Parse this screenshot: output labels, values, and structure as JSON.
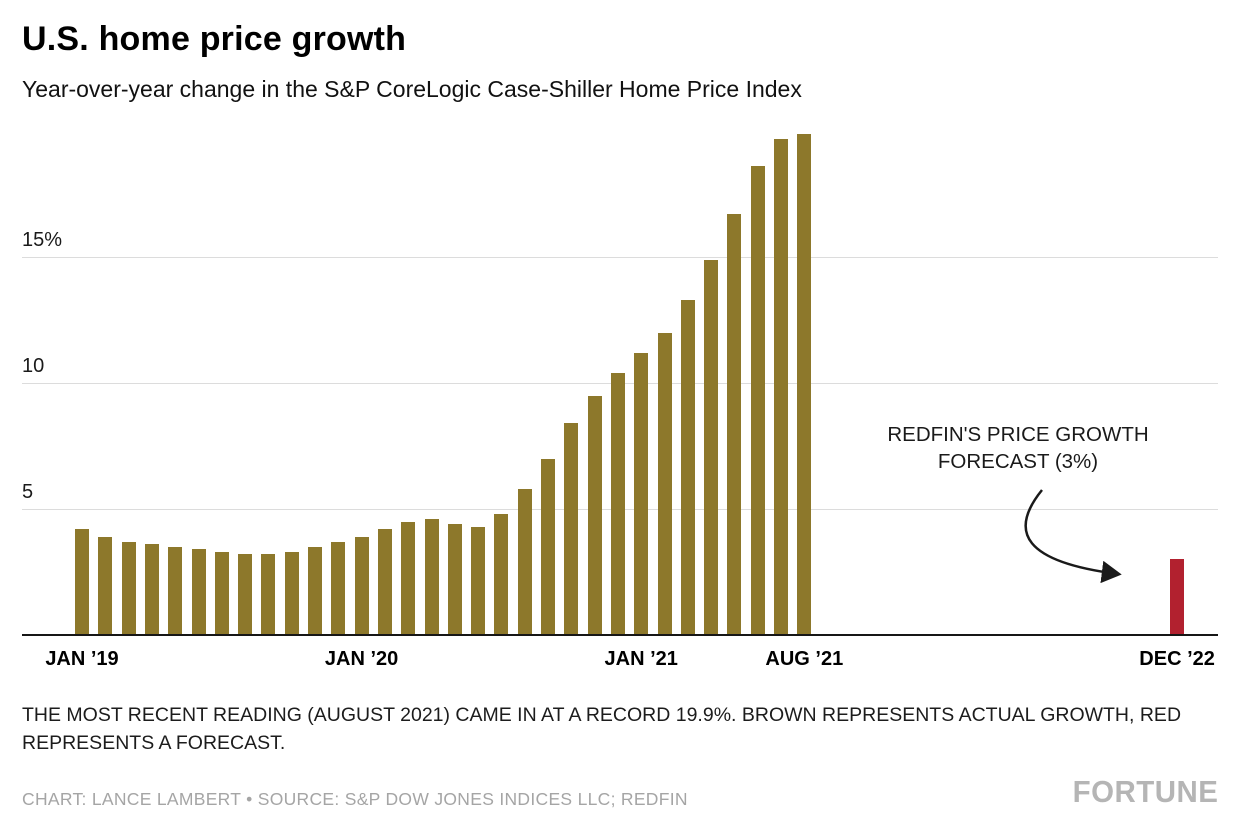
{
  "chart_data": {
    "type": "bar",
    "title": "U.S. home price growth",
    "subtitle": "Year-over-year change in the S&P CoreLogic Case-Shiller Home Price Index",
    "xlabel": "",
    "ylabel": "",
    "ylim": [
      0,
      20.5
    ],
    "grid": "horizontal",
    "legend": "none",
    "annotation": "REDFIN'S PRICE GROWTH FORECAST (3%)",
    "yticks": [
      {
        "value": 5,
        "label": "5"
      },
      {
        "value": 10,
        "label": "10"
      },
      {
        "value": 15,
        "label": "15%"
      }
    ],
    "x_axis_labels": [
      {
        "text": "JAN ’19",
        "x_index": 0
      },
      {
        "text": "JAN ’20",
        "x_index": 12
      },
      {
        "text": "JAN ’21",
        "x_index": 24
      },
      {
        "text": "AUG ’21",
        "x_index": 31
      },
      {
        "text": "DEC ’22",
        "x_index": 47
      }
    ],
    "series": [
      {
        "name": "Actual growth",
        "key": "actual",
        "color": "#8d782b",
        "bars": [
          {
            "label": "Jan ’19",
            "value": 4.2
          },
          {
            "label": "Feb ’19",
            "value": 3.9
          },
          {
            "label": "Mar ’19",
            "value": 3.7
          },
          {
            "label": "Apr ’19",
            "value": 3.6
          },
          {
            "label": "May ’19",
            "value": 3.5
          },
          {
            "label": "Jun ’19",
            "value": 3.4
          },
          {
            "label": "Jul ’19",
            "value": 3.3
          },
          {
            "label": "Aug ’19",
            "value": 3.2
          },
          {
            "label": "Sep ’19",
            "value": 3.2
          },
          {
            "label": "Oct ’19",
            "value": 3.3
          },
          {
            "label": "Nov ’19",
            "value": 3.5
          },
          {
            "label": "Dec ’19",
            "value": 3.7
          },
          {
            "label": "Jan ’20",
            "value": 3.9
          },
          {
            "label": "Feb ’20",
            "value": 4.2
          },
          {
            "label": "Mar ’20",
            "value": 4.5
          },
          {
            "label": "Apr ’20",
            "value": 4.6
          },
          {
            "label": "May ’20",
            "value": 4.4
          },
          {
            "label": "Jun ’20",
            "value": 4.3
          },
          {
            "label": "Jul ’20",
            "value": 4.8
          },
          {
            "label": "Aug ’20",
            "value": 5.8
          },
          {
            "label": "Sep ’20",
            "value": 7.0
          },
          {
            "label": "Oct ’20",
            "value": 8.4
          },
          {
            "label": "Nov ’20",
            "value": 9.5
          },
          {
            "label": "Dec ’20",
            "value": 10.4
          },
          {
            "label": "Jan ’21",
            "value": 11.2
          },
          {
            "label": "Feb ’21",
            "value": 12.0
          },
          {
            "label": "Mar ’21",
            "value": 13.3
          },
          {
            "label": "Apr ’21",
            "value": 14.9
          },
          {
            "label": "May ’21",
            "value": 16.7
          },
          {
            "label": "Jun ’21",
            "value": 18.6
          },
          {
            "label": "Jul ’21",
            "value": 19.7
          },
          {
            "label": "Aug ’21",
            "value": 19.9
          }
        ]
      },
      {
        "name": "Forecast",
        "key": "forecast",
        "color": "#b2212f",
        "bars": [
          {
            "label": "Dec ’22",
            "value": 3.0,
            "x_index": 47
          }
        ]
      }
    ]
  },
  "footnote": "THE MOST RECENT READING (AUGUST 2021) CAME IN AT A RECORD 19.9%. BROWN REPRESENTS ACTUAL GROWTH, RED REPRESENTS A FORECAST.",
  "credit": "CHART: LANCE LAMBERT • SOURCE: S&P DOW JONES INDICES LLC; REDFIN",
  "brand": "FORTUNE"
}
